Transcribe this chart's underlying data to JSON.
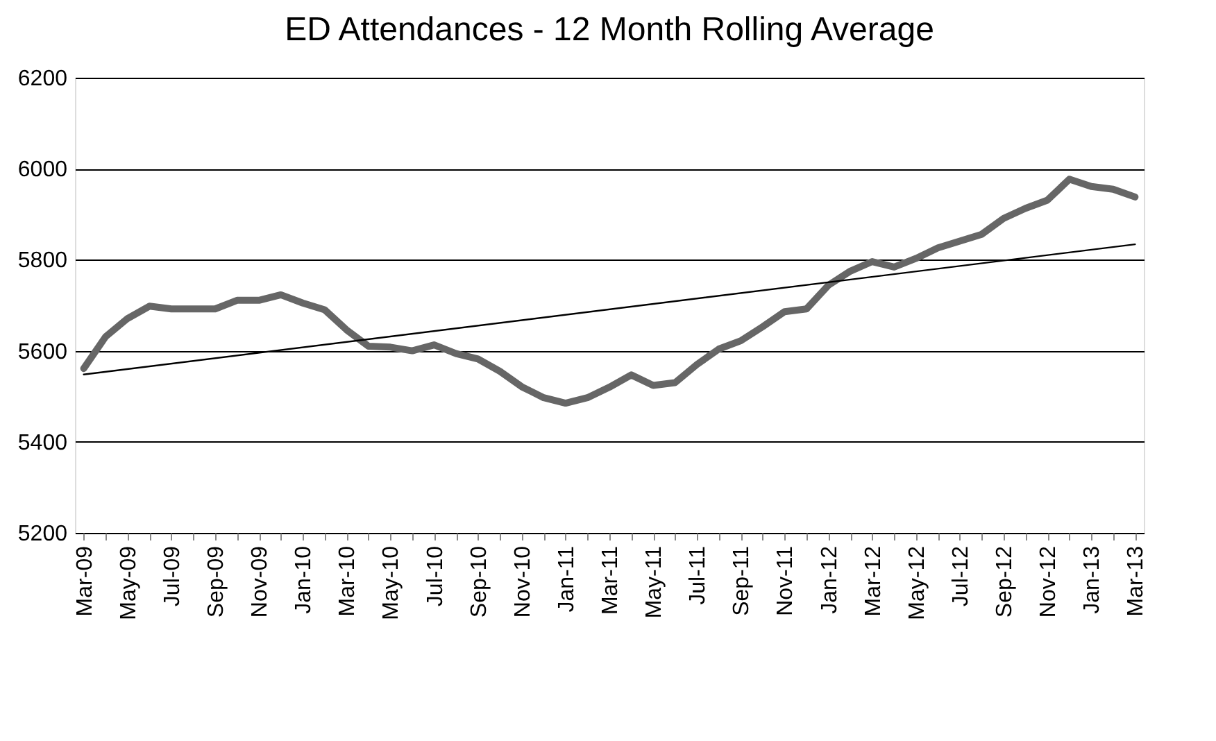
{
  "chart_data": {
    "type": "line",
    "title": "ED Attendances - 12 Month Rolling Average",
    "categories": [
      "Mar-09",
      null,
      "May-09",
      null,
      "Jul-09",
      null,
      "Sep-09",
      null,
      "Nov-09",
      null,
      "Jan-10",
      null,
      "Mar-10",
      null,
      "May-10",
      null,
      "Jul-10",
      null,
      "Sep-10",
      null,
      "Nov-10",
      null,
      "Jan-11",
      null,
      "Mar-11",
      null,
      "May-11",
      null,
      "Jul-11",
      null,
      "Sep-11",
      null,
      "Nov-11",
      null,
      "Jan-12",
      null,
      "Mar-12",
      null,
      "May-12",
      null,
      "Jul-12",
      null,
      "Sep-12",
      null,
      "Nov-12",
      null,
      "Jan-13",
      null,
      "Mar-13"
    ],
    "series": [
      {
        "color": "#666666",
        "values": [
          5561,
          5631,
          5671,
          5698,
          5692,
          5692,
          5692,
          5711,
          5711,
          5723,
          5705,
          5690,
          5646,
          5610,
          5608,
          5600,
          5613,
          5594,
          5582,
          5555,
          5521,
          5497,
          5485,
          5497,
          5520,
          5547,
          5524,
          5530,
          5570,
          5604,
          5622,
          5653,
          5686,
          5692,
          5744,
          5775,
          5796,
          5784,
          5803,
          5826,
          5841,
          5856,
          5891,
          5913,
          5931,
          5977,
          5961,
          5955,
          5938
        ]
      },
      {
        "type": "line",
        "color": "#000000",
        "x": [
          "Mar-09",
          "Mar-13"
        ],
        "values": [
          5548,
          5834
        ]
      }
    ],
    "ylim": [
      5200,
      6200
    ],
    "yticks": [
      5200,
      5400,
      5600,
      5800,
      6000,
      6200
    ],
    "grid": "y"
  }
}
